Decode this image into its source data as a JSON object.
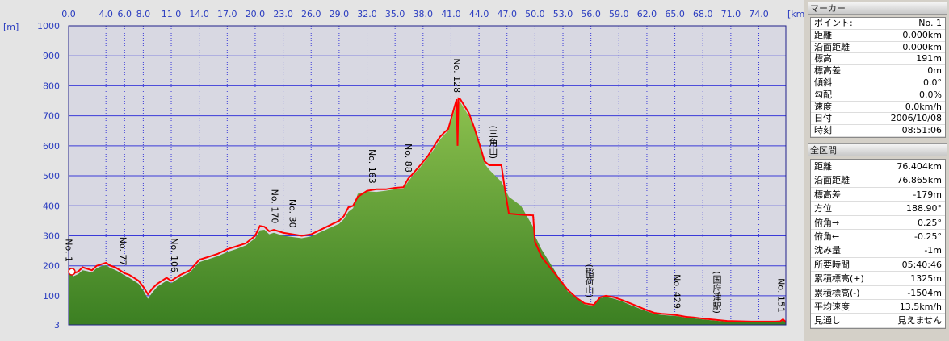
{
  "chart_data": {
    "type": "area",
    "x_unit": "[km]",
    "y_unit": "[m]",
    "xlim": [
      0,
      76.9
    ],
    "ylim": [
      3,
      1000
    ],
    "xticks": [
      {
        "value": 0,
        "label": "0.0"
      },
      {
        "value": 4,
        "label": "4.0"
      },
      {
        "value": 6,
        "label": "6.0"
      },
      {
        "value": 8,
        "label": "8.0"
      },
      {
        "value": 11,
        "label": "11.0"
      },
      {
        "value": 14,
        "label": "14.0"
      },
      {
        "value": 17,
        "label": "17.0"
      },
      {
        "value": 20,
        "label": "20.0"
      },
      {
        "value": 23,
        "label": "23.0"
      },
      {
        "value": 26,
        "label": "26.0"
      },
      {
        "value": 29,
        "label": "29.0"
      },
      {
        "value": 32,
        "label": "32.0"
      },
      {
        "value": 35,
        "label": "35.0"
      },
      {
        "value": 38,
        "label": "38.0"
      },
      {
        "value": 41,
        "label": "41.0"
      },
      {
        "value": 44,
        "label": "44.0"
      },
      {
        "value": 47,
        "label": "47.0"
      },
      {
        "value": 50,
        "label": "50.0"
      },
      {
        "value": 53,
        "label": "53.0"
      },
      {
        "value": 56,
        "label": "56.0"
      },
      {
        "value": 59,
        "label": "59.0"
      },
      {
        "value": 62,
        "label": "62.0"
      },
      {
        "value": 65,
        "label": "65.0"
      },
      {
        "value": 68,
        "label": "68.0"
      },
      {
        "value": 71,
        "label": "71.0"
      },
      {
        "value": 74,
        "label": "74.0"
      }
    ],
    "yticks": [
      3,
      100,
      200,
      300,
      400,
      500,
      600,
      700,
      800,
      900,
      1000
    ],
    "grid": true,
    "x": [
      0,
      0.5,
      1,
      1.5,
      2,
      2.5,
      3,
      3.5,
      4,
      4.5,
      5,
      5.5,
      6,
      6.5,
      7,
      7.5,
      8,
      8.5,
      9,
      9.5,
      10,
      10.5,
      11,
      11.5,
      12,
      13,
      14,
      15,
      16,
      17,
      18,
      19,
      20,
      20.5,
      21,
      21.5,
      22,
      23,
      24,
      25,
      26,
      27,
      28,
      29,
      29.5,
      30,
      30.5,
      31,
      32,
      33,
      34,
      35,
      35.9,
      36.4,
      37,
      37.7,
      38.5,
      39.2,
      39.8,
      40.3,
      40.7,
      41.1,
      41.6,
      41.7,
      41.8,
      42,
      42.3,
      42.9,
      43.5,
      44.2,
      44.6,
      45.1,
      46.4,
      46.8,
      47.2,
      48.5,
      49.8,
      50,
      50.7,
      51.5,
      52.4,
      53.5,
      54.5,
      55.3,
      56.3,
      57,
      57.6,
      58.5,
      59.3,
      60.2,
      61,
      62,
      62.8,
      63.6,
      64.5,
      65.3,
      66.2,
      67,
      68,
      69.3,
      70.6,
      72,
      73.2,
      74.5,
      75.8,
      76.3,
      76.6,
      76.9
    ],
    "series": [
      {
        "kind": "area",
        "color": "#8cc04e",
        "values": [
          180,
          165,
          172,
          185,
          182,
          178,
          192,
          198,
          202,
          192,
          186,
          178,
          168,
          160,
          150,
          140,
          118,
          90,
          112,
          130,
          140,
          150,
          142,
          152,
          162,
          178,
          212,
          222,
          232,
          246,
          256,
          268,
          292,
          318,
          320,
          305,
          310,
          300,
          296,
          292,
          298,
          312,
          326,
          340,
          355,
          380,
          392,
          440,
          448,
          446,
          450,
          455,
          458,
          480,
          505,
          528,
          560,
          590,
          620,
          638,
          650,
          690,
          740,
          735,
          745,
          745,
          730,
          700,
          655,
          600,
          540,
          520,
          480,
          455,
          430,
          400,
          330,
          300,
          255,
          215,
          170,
          115,
          90,
          72,
          66,
          92,
          96,
          90,
          82,
          70,
          60,
          48,
          40,
          36,
          34,
          32,
          27,
          25,
          21,
          17,
          14,
          12,
          12,
          12,
          12,
          13,
          18,
          10
        ]
      },
      {
        "kind": "line",
        "color": "#ff0000",
        "values": [
          191,
          175,
          180,
          195,
          190,
          185,
          200,
          205,
          210,
          200,
          195,
          185,
          175,
          170,
          160,
          150,
          130,
          105,
          125,
          140,
          150,
          160,
          150,
          160,
          170,
          185,
          220,
          230,
          240,
          255,
          265,
          275,
          300,
          333,
          330,
          315,
          320,
          310,
          305,
          300,
          305,
          320,
          335,
          350,
          365,
          395,
          400,
          430,
          450,
          455,
          455,
          460,
          462,
          490,
          510,
          535,
          565,
          600,
          629,
          645,
          656,
          700,
          755,
          600,
          758,
          755,
          740,
          710,
          660,
          590,
          548,
          535,
          535,
          450,
          374,
          370,
          368,
          280,
          230,
          199,
          164,
          120,
          92,
          75,
          70,
          95,
          100,
          95,
          86,
          75,
          65,
          52,
          43,
          40,
          38,
          35,
          30,
          28,
          24,
          20,
          16,
          15,
          14,
          14,
          14,
          15,
          22,
          12
        ]
      }
    ],
    "annotations": [
      {
        "text": "No. 1",
        "x": 0
      },
      {
        "text": "No. 77",
        "x": 5.8
      },
      {
        "text": "No. 106",
        "x": 11.3
      },
      {
        "text": "No. 170",
        "x": 22.1
      },
      {
        "text": "No. 30",
        "x": 24.0
      },
      {
        "text": "No. 163",
        "x": 32.5
      },
      {
        "text": "No. 88",
        "x": 36.4
      },
      {
        "text": "No. 128",
        "x": 41.6
      },
      {
        "text": "(三角山)",
        "x": 45.5
      },
      {
        "text": "(稲荷山)",
        "x": 55.8
      },
      {
        "text": "No. 429",
        "x": 65.2
      },
      {
        "text": "(国府津駅)",
        "x": 69.5
      },
      {
        "text": "No. 151",
        "x": 76.6
      }
    ]
  },
  "marker_panel": {
    "title": "マーカー",
    "rows": [
      [
        "ポイント:",
        "No. 1"
      ],
      [
        "距離",
        "0.000km"
      ],
      [
        "沿面距離",
        "0.000km"
      ],
      [
        "標高",
        "191m"
      ],
      [
        "標高差",
        "0m"
      ],
      [
        "傾斜",
        "0.0°"
      ],
      [
        "勾配",
        "0.0%"
      ],
      [
        "速度",
        "0.0km/h"
      ],
      [
        "日付",
        "2006/10/08"
      ],
      [
        "時刻",
        "08:51:06"
      ]
    ]
  },
  "total_panel": {
    "title": "全区間",
    "rows": [
      [
        "距離",
        "76.404km"
      ],
      [
        "沿面距離",
        "76.865km"
      ],
      [
        "標高差",
        "-179m"
      ],
      [
        "方位",
        "188.90°"
      ],
      [
        "俯角→",
        "0.25°"
      ],
      [
        "俯角←",
        "-0.25°"
      ],
      [
        "沈み量",
        "-1m"
      ],
      [
        "所要時間",
        "05:40:46"
      ],
      [
        "累積標高(+)",
        "1325m"
      ],
      [
        "累積標高(-)",
        "-1504m"
      ],
      [
        "平均速度",
        "13.5km/h"
      ],
      [
        "見通し",
        "見えません"
      ]
    ]
  }
}
